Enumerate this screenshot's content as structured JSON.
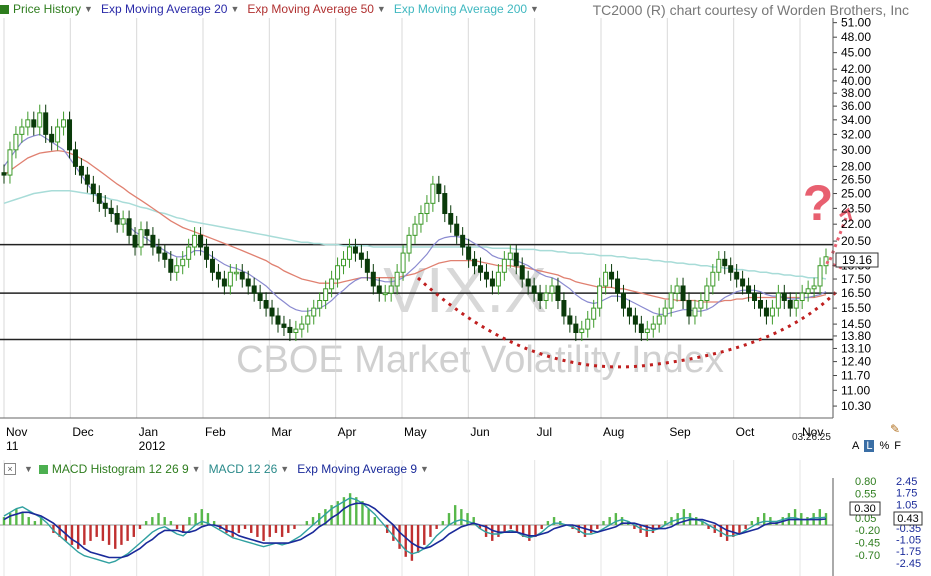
{
  "legend": [
    {
      "label": "Price History",
      "color": "#2e7d1e"
    },
    {
      "label": "Exp Moving Average 20",
      "color": "#2a2aa8"
    },
    {
      "label": "Exp Moving Average 50",
      "color": "#b03030"
    },
    {
      "label": "Exp Moving Average 200",
      "color": "#40b8c0"
    }
  ],
  "credit": "TC2000 (R) chart courtesy of Worden Brothers, Inc",
  "watermark_symbol": "VIX.X",
  "watermark_name": "CBOE Market Volatility Index",
  "question_mark": "?",
  "time": "03:26:25",
  "toolbar": {
    "a": "A",
    "l": "L",
    "pct": "%",
    "f": "F"
  },
  "macd_legend": [
    {
      "label": "MACD Histogram 12 26 9",
      "color": "#4caf50"
    },
    {
      "label": "MACD 12 26",
      "color": "#2a8a8a"
    },
    {
      "label": "Exp Moving Average 9",
      "color": "#1a2a9a"
    }
  ],
  "chart_data": {
    "type": "candlestick",
    "x_labels": [
      "Nov",
      "Dec",
      "Jan",
      "Feb",
      "Mar",
      "Apr",
      "May",
      "Jun",
      "Jul",
      "Aug",
      "Sep",
      "Oct",
      "Nov"
    ],
    "x_sublabels": [
      "11",
      "",
      "2012",
      "",
      "",
      "",
      "",
      "",
      "",
      "",
      "",
      "",
      ""
    ],
    "y_ticks": [
      51.0,
      48.0,
      45.0,
      42.0,
      40.0,
      38.0,
      36.0,
      34.0,
      32.0,
      30.0,
      28.0,
      26.5,
      25.0,
      23.5,
      22.0,
      20.5,
      18.5,
      17.5,
      16.5,
      15.5,
      14.5,
      13.8,
      13.1,
      12.4,
      11.7,
      11.0,
      10.3
    ],
    "y_scale": "log",
    "ylim": [
      9.8,
      52
    ],
    "last_price": "19.16",
    "horizontal_lines": [
      20.2,
      16.5,
      13.6
    ],
    "close_series": [
      27,
      30,
      32,
      33,
      34,
      33,
      35,
      32,
      31,
      33,
      34,
      30,
      28,
      27,
      26,
      25,
      24,
      23.5,
      23,
      22,
      22.5,
      21,
      20,
      21.5,
      21,
      20,
      19.5,
      19,
      18,
      18.5,
      19,
      20,
      21,
      20,
      19,
      18,
      17.5,
      17,
      18,
      18,
      17.5,
      17,
      16.5,
      16,
      15.5,
      15,
      14.5,
      14.3,
      14,
      14.2,
      14.5,
      15,
      15.5,
      16,
      16.8,
      17.5,
      18.5,
      19,
      20,
      19.5,
      19,
      18,
      17,
      16.5,
      16.5,
      17,
      18,
      19.5,
      21,
      22,
      23,
      24,
      26,
      25,
      23,
      22,
      21,
      20,
      19,
      18.5,
      18,
      17.5,
      17,
      18,
      19,
      19.5,
      18.5,
      17.5,
      17,
      16.5,
      16,
      16.5,
      17,
      16,
      15,
      14.5,
      14,
      14.2,
      14.8,
      15.5,
      17,
      18,
      17.5,
      16.5,
      15.5,
      15,
      14.5,
      14,
      14.2,
      14.5,
      15,
      15.5,
      16.5,
      17,
      16,
      15,
      15.5,
      16,
      17,
      18,
      19,
      18.5,
      18,
      17.5,
      17,
      16.5,
      16,
      15.5,
      15,
      15.5,
      16.5,
      16,
      15.5,
      16,
      16.5,
      16.8,
      17,
      18.5,
      19.2
    ],
    "ema20": [
      28,
      29,
      30,
      31,
      31.5,
      31.8,
      32,
      31.5,
      31,
      30.5,
      30,
      29,
      28,
      27,
      26,
      25.2,
      24.5,
      23.8,
      23.2,
      22.7,
      22.3,
      21.8,
      21.3,
      21,
      20.7,
      20.3,
      20,
      19.7,
      19.4,
      19.2,
      19.2,
      19.4,
      19.7,
      19.7,
      19.5,
      19.2,
      18.9,
      18.6,
      18.4,
      18.3,
      18.1,
      17.9,
      17.6,
      17.3,
      17,
      16.6,
      16.2,
      15.9,
      15.6,
      15.4,
      15.3,
      15.3,
      15.4,
      15.5,
      15.7,
      16,
      16.4,
      16.7,
      17.1,
      17.4,
      17.6,
      17.6,
      17.5,
      17.4,
      17.3,
      17.3,
      17.4,
      17.6,
      18,
      18.4,
      18.9,
      19.4,
      20.1,
      20.6,
      20.8,
      20.9,
      20.9,
      20.8,
      20.6,
      20.3,
      20,
      19.7,
      19.3,
      19.1,
      19,
      19,
      18.9,
      18.7,
      18.5,
      18.2,
      17.9,
      17.7,
      17.6,
      17.4,
      17.1,
      16.8,
      16.4,
      16.1,
      15.9,
      15.8,
      15.9,
      16.1,
      16.3,
      16.3,
      16.2,
      16,
      15.8,
      15.6,
      15.4,
      15.2,
      15.1,
      15.1,
      15.2,
      15.3,
      15.4,
      15.4,
      15.3,
      15.3,
      15.4,
      15.6,
      15.9,
      16.2,
      16.4,
      16.6,
      16.7,
      16.7,
      16.7,
      16.6,
      16.4,
      16.3,
      16.3,
      16.2,
      16.1,
      16.1,
      16.2,
      16.2,
      16.3,
      16.4,
      16.6
    ],
    "ema50": [
      27,
      27.5,
      28,
      28.5,
      29,
      29.3,
      29.6,
      29.7,
      29.8,
      29.9,
      29.8,
      29.6,
      29.3,
      28.9,
      28.5,
      28,
      27.5,
      27,
      26.5,
      26,
      25.6,
      25.1,
      24.7,
      24.3,
      23.9,
      23.5,
      23.1,
      22.7,
      22.3,
      22,
      21.7,
      21.5,
      21.3,
      21.1,
      20.9,
      20.7,
      20.5,
      20.3,
      20.1,
      19.9,
      19.7,
      19.5,
      19.3,
      19.1,
      18.9,
      18.6,
      18.4,
      18.1,
      17.9,
      17.7,
      17.5,
      17.4,
      17.3,
      17.2,
      17.2,
      17.2,
      17.2,
      17.3,
      17.4,
      17.5,
      17.6,
      17.6,
      17.6,
      17.6,
      17.6,
      17.6,
      17.6,
      17.7,
      17.8,
      17.9,
      18.1,
      18.3,
      18.5,
      18.7,
      18.8,
      18.9,
      18.9,
      18.9,
      18.9,
      18.9,
      18.8,
      18.7,
      18.6,
      18.5,
      18.5,
      18.5,
      18.4,
      18.4,
      18.3,
      18.2,
      18.1,
      18,
      17.9,
      17.8,
      17.6,
      17.5,
      17.3,
      17.2,
      17.1,
      17,
      16.9,
      16.9,
      16.9,
      16.8,
      16.8,
      16.7,
      16.6,
      16.5,
      16.4,
      16.3,
      16.2,
      16.1,
      16.1,
      16,
      16,
      16,
      16,
      15.9,
      15.9,
      15.9,
      15.9,
      16,
      16,
      16.1,
      16.1,
      16.2,
      16.2,
      16.2,
      16.2,
      16.2,
      16.2,
      16.2,
      16.2,
      16.2,
      16.2,
      16.2,
      16.2,
      16.3,
      16.4
    ],
    "ema200": [
      24,
      24.2,
      24.4,
      24.6,
      24.8,
      25,
      25.1,
      25.2,
      25.3,
      25.3,
      25.3,
      25.3,
      25.2,
      25.1,
      25,
      24.9,
      24.7,
      24.6,
      24.4,
      24.3,
      24.1,
      24,
      23.8,
      23.6,
      23.5,
      23.3,
      23.1,
      23,
      22.8,
      22.6,
      22.5,
      22.3,
      22.2,
      22.1,
      22,
      21.9,
      21.8,
      21.7,
      21.6,
      21.5,
      21.4,
      21.3,
      21.2,
      21.1,
      21,
      20.9,
      20.8,
      20.7,
      20.6,
      20.5,
      20.4,
      20.4,
      20.3,
      20.3,
      20.2,
      20.2,
      20.2,
      20.1,
      20.1,
      20.1,
      20.1,
      20.1,
      20,
      20,
      20,
      20,
      20,
      20,
      20,
      20,
      20,
      20,
      20,
      20,
      20,
      20,
      20,
      20,
      20,
      20,
      20,
      20,
      19.9,
      19.9,
      19.9,
      19.9,
      19.8,
      19.8,
      19.8,
      19.8,
      19.7,
      19.7,
      19.7,
      19.6,
      19.6,
      19.5,
      19.5,
      19.5,
      19.4,
      19.4,
      19.3,
      19.3,
      19.3,
      19.2,
      19.2,
      19.1,
      19.1,
      19,
      19,
      18.9,
      18.9,
      18.8,
      18.8,
      18.7,
      18.7,
      18.6,
      18.6,
      18.5,
      18.5,
      18.4,
      18.4,
      18.3,
      18.3,
      18.2,
      18.2,
      18.1,
      18.1,
      18,
      18,
      17.9,
      17.9,
      17.8,
      17.8,
      17.7,
      17.7,
      17.6,
      17.6,
      17.6,
      17.5
    ],
    "macd": {
      "y_ticks_left": [
        0.8,
        0.55,
        0.3,
        0.05,
        -0.2,
        -0.45,
        -0.7
      ],
      "y_ticks_right": [
        2.45,
        1.75,
        1.05,
        0.35,
        -0.35,
        -1.05,
        -1.75,
        -2.45
      ],
      "hist_value": "0.30",
      "macd_value": "0.43",
      "ylim": [
        -2.6,
        2.6
      ],
      "histogram": [
        0.2,
        0.3,
        0.4,
        0.3,
        0.2,
        0.1,
        0.2,
        0,
        -0.2,
        -0.3,
        -0.4,
        -0.5,
        -0.6,
        -0.5,
        -0.4,
        -0.3,
        -0.4,
        -0.5,
        -0.6,
        -0.5,
        -0.4,
        -0.3,
        -0.1,
        0.1,
        0.2,
        0.3,
        0.2,
        0.1,
        -0.1,
        -0.2,
        0.2,
        0.3,
        0.4,
        0.3,
        0.1,
        -0.1,
        -0.2,
        -0.3,
        -0.2,
        -0.1,
        -0.2,
        -0.3,
        -0.4,
        -0.3,
        -0.2,
        -0.3,
        -0.2,
        -0.1,
        0,
        0.1,
        0.2,
        0.3,
        0.4,
        0.5,
        0.6,
        0.7,
        0.8,
        0.7,
        0.6,
        0.4,
        0.2,
        0,
        -0.2,
        -0.4,
        -0.6,
        -0.8,
        -0.9,
        -0.7,
        -0.5,
        -0.3,
        -0.1,
        0.1,
        0.3,
        0.5,
        0.4,
        0.3,
        0.2,
        -0.1,
        -0.3,
        -0.4,
        -0.3,
        -0.2,
        -0.1,
        -0.2,
        -0.3,
        -0.4,
        -0.3,
        -0.1,
        0.1,
        0.2,
        0.1,
        0,
        -0.1,
        -0.2,
        -0.3,
        -0.2,
        -0.1,
        0.1,
        0.2,
        0.3,
        0.2,
        0.1,
        -0.1,
        -0.2,
        -0.3,
        -0.2,
        -0.1,
        0.1,
        0.2,
        0.3,
        0.4,
        0.3,
        0.2,
        0.1,
        -0.1,
        -0.2,
        -0.3,
        -0.4,
        -0.3,
        -0.2,
        -0.1,
        0.1,
        0.2,
        0.3,
        0.2,
        0.1,
        0.2,
        0.3,
        0.4,
        0.3,
        0.2,
        0.3,
        0.4,
        0.3
      ],
      "macd_line": [
        0.5,
        0.7,
        0.9,
        1.0,
        0.8,
        0.6,
        0.4,
        0.1,
        -0.3,
        -0.6,
        -0.9,
        -1.2,
        -1.5,
        -1.7,
        -1.8,
        -1.9,
        -2.0,
        -2.1,
        -2.0,
        -1.8,
        -1.6,
        -1.3,
        -1.0,
        -0.7,
        -0.4,
        -0.2,
        -0.1,
        -0.3,
        -0.5,
        -0.6,
        -0.3,
        0,
        0.2,
        0.1,
        -0.1,
        -0.3,
        -0.5,
        -0.7,
        -0.8,
        -0.9,
        -1.0,
        -1.1,
        -1.2,
        -1.1,
        -1.0,
        -1.1,
        -1.0,
        -0.8,
        -0.6,
        -0.3,
        0,
        0.3,
        0.6,
        0.9,
        1.1,
        1.3,
        1.5,
        1.4,
        1.2,
        0.9,
        0.6,
        0.2,
        -0.2,
        -0.6,
        -1.0,
        -1.4,
        -1.6,
        -1.5,
        -1.3,
        -1.0,
        -0.6,
        -0.3,
        0,
        0.2,
        0.3,
        0.2,
        0.1,
        -0.2,
        -0.4,
        -0.5,
        -0.5,
        -0.4,
        -0.3,
        -0.4,
        -0.6,
        -0.7,
        -0.6,
        -0.4,
        -0.1,
        0.1,
        0.1,
        0,
        -0.1,
        -0.3,
        -0.5,
        -0.5,
        -0.4,
        -0.2,
        0,
        0.2,
        0.3,
        0.2,
        0,
        -0.2,
        -0.3,
        -0.3,
        -0.2,
        0,
        0.2,
        0.3,
        0.4,
        0.4,
        0.3,
        0.2,
        0,
        -0.2,
        -0.4,
        -0.6,
        -0.6,
        -0.5,
        -0.3,
        -0.1,
        0.1,
        0.2,
        0.2,
        0.2,
        0.3,
        0.4,
        0.4,
        0.3,
        0.3,
        0.4,
        0.4,
        0.43
      ],
      "signal_line": [
        0.3,
        0.5,
        0.6,
        0.7,
        0.7,
        0.6,
        0.5,
        0.3,
        0.1,
        -0.2,
        -0.5,
        -0.8,
        -1.0,
        -1.3,
        -1.5,
        -1.6,
        -1.7,
        -1.8,
        -1.8,
        -1.8,
        -1.7,
        -1.5,
        -1.3,
        -1.0,
        -0.8,
        -0.5,
        -0.3,
        -0.3,
        -0.3,
        -0.4,
        -0.4,
        -0.3,
        -0.1,
        0,
        0,
        -0.1,
        -0.3,
        -0.4,
        -0.6,
        -0.7,
        -0.8,
        -0.9,
        -1.0,
        -1.0,
        -1.0,
        -1.0,
        -1.0,
        -0.9,
        -0.8,
        -0.6,
        -0.4,
        -0.1,
        0.1,
        0.4,
        0.6,
        0.9,
        1.1,
        1.2,
        1.2,
        1.1,
        0.9,
        0.6,
        0.3,
        0,
        -0.4,
        -0.7,
        -1.0,
        -1.2,
        -1.3,
        -1.2,
        -1.0,
        -0.8,
        -0.5,
        -0.3,
        -0.1,
        0,
        0.1,
        0,
        -0.1,
        -0.3,
        -0.4,
        -0.4,
        -0.4,
        -0.4,
        -0.5,
        -0.6,
        -0.6,
        -0.5,
        -0.4,
        -0.2,
        -0.1,
        0,
        0,
        -0.1,
        -0.2,
        -0.3,
        -0.4,
        -0.3,
        -0.2,
        -0.1,
        0.1,
        0.1,
        0.1,
        0,
        -0.1,
        -0.2,
        -0.2,
        -0.2,
        -0.1,
        0.1,
        0.2,
        0.3,
        0.3,
        0.3,
        0.2,
        0.1,
        -0.1,
        -0.3,
        -0.4,
        -0.5,
        -0.4,
        -0.3,
        -0.2,
        0,
        0.1,
        0.1,
        0.2,
        0.3,
        0.3,
        0.3,
        0.3,
        0.3,
        0.3,
        0.33
      ]
    }
  },
  "colors": {
    "up": "#3d9a2a",
    "down": "#0a3a0a",
    "ema20": "#8a8ad0",
    "ema50": "#e08070",
    "ema200": "#a8dcd8",
    "hist_up": "#58b84a",
    "hist_down": "#c03030",
    "macd": "#30a0a0",
    "signal": "#1a2a9a",
    "arc": "#c02020",
    "question": "#e86070"
  }
}
